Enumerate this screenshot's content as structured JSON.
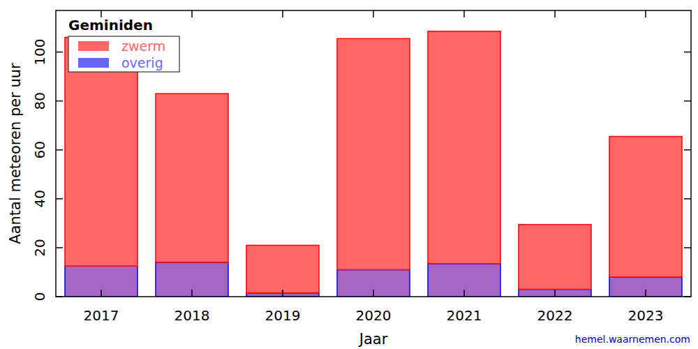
{
  "chart_data": {
    "type": "bar",
    "title": "Geminiden",
    "x_label": "Jaar",
    "y_label": "Aantal meteoren per uur",
    "annotation": "hemel.waarnemen.com",
    "categories": [
      "2017",
      "2018",
      "2019",
      "2020",
      "2021",
      "2022",
      "2023"
    ],
    "series": [
      {
        "name": "overig",
        "color": "#6666ff",
        "values": [
          12.5,
          14,
          1.5,
          11,
          13.5,
          3,
          8
        ]
      },
      {
        "name": "zwerm",
        "color": "#ff6666",
        "values": [
          93.5,
          69,
          19.5,
          94.5,
          95,
          26.5,
          57.5
        ]
      }
    ],
    "stacked": true,
    "legend": "upper left",
    "ylim": [
      0,
      117
    ],
    "yticks": [
      0,
      20,
      40,
      60,
      80,
      100
    ],
    "grid": false
  }
}
